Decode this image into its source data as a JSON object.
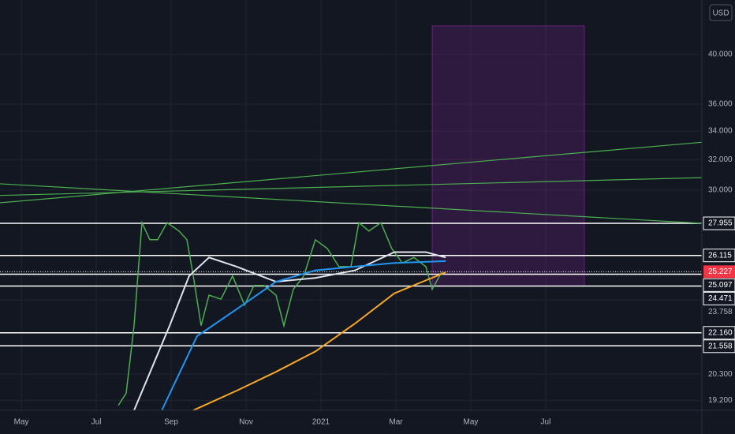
{
  "chart_data": {
    "type": "line",
    "log_scale": true,
    "grid": true,
    "currency": "USD",
    "xlim": [
      -0.57,
      18.17
    ],
    "ylim": [
      18.8,
      44.9
    ],
    "xticks": [
      {
        "value": 0,
        "label": "May"
      },
      {
        "value": 2,
        "label": "Jul"
      },
      {
        "value": 4,
        "label": "Sep"
      },
      {
        "value": 6,
        "label": "Nov"
      },
      {
        "value": 8,
        "label": "2021"
      },
      {
        "value": 10,
        "label": "Mar"
      },
      {
        "value": 12,
        "label": "May"
      },
      {
        "value": 14,
        "label": "Jul"
      }
    ],
    "yticks": [
      {
        "value": 19.2,
        "label": "19.200"
      },
      {
        "value": 20.3,
        "label": "20.300"
      },
      {
        "value": 23.758,
        "label": "23.758"
      },
      {
        "value": 30,
        "label": "30.000"
      },
      {
        "value": 32,
        "label": "32.000"
      },
      {
        "value": 34,
        "label": "34.000"
      },
      {
        "value": 36,
        "label": "36.000"
      },
      {
        "value": 40,
        "label": "40.000"
      }
    ],
    "levels": [
      {
        "value": 21.558,
        "label": "21.558"
      },
      {
        "value": 22.16,
        "label": "22.160"
      },
      {
        "value": 24.471,
        "label": "24.471"
      },
      {
        "value": 25.097,
        "label": "25.097"
      },
      {
        "value": 26.115,
        "label": "26.115"
      },
      {
        "value": 27.955,
        "label": "27.955"
      }
    ],
    "last_price": {
      "value": 25.227,
      "label": "25.227",
      "color": "#f23645"
    },
    "series": [
      {
        "color": "#4caf50",
        "x": [
          2.59,
          2.8,
          3.01,
          3.22,
          3.43,
          3.64,
          3.89,
          4.21,
          4.42,
          4.59,
          4.8,
          5.01,
          5.33,
          5.64,
          5.96,
          6.21,
          6.48,
          6.8,
          7.01,
          7.26,
          7.54,
          7.85,
          8.17,
          8.48,
          8.8,
          9.01,
          9.28,
          9.6,
          9.89,
          10.17,
          10.48,
          10.8,
          10.97,
          11.22
        ],
        "values": [
          19,
          19.5,
          22.5,
          28,
          27,
          27,
          28,
          27.5,
          27,
          25,
          22.5,
          24,
          23.8,
          25,
          23.5,
          24.5,
          24.5,
          24,
          22.5,
          24.3,
          25,
          27,
          26.5,
          25.5,
          25.5,
          28,
          27.5,
          28,
          26.5,
          25.7,
          26,
          25.5,
          24.3,
          25.2
        ]
      },
      {
        "color": "#e0e3eb",
        "x": [
          3.01,
          3.96,
          4.48,
          5.01,
          5.75,
          6.8,
          7.85,
          8.91,
          9.96,
          10.8,
          11.33
        ],
        "values": [
          18.8,
          22.5,
          25,
          26,
          25.5,
          24.7,
          24.9,
          25.3,
          26.3,
          26.3,
          26
        ]
      },
      {
        "color": "#2196f3",
        "x": [
          3.75,
          4.69,
          5.75,
          6.8,
          7.85,
          8.91,
          9.96,
          11.33
        ],
        "values": [
          18.8,
          22,
          23.3,
          24.7,
          25.3,
          25.5,
          25.7,
          25.8
        ]
      },
      {
        "color": "#f9a825",
        "x": [
          4.59,
          5.75,
          6.8,
          7.85,
          8.91,
          9.96,
          11.33
        ],
        "values": [
          18.8,
          19.6,
          20.4,
          21.3,
          22.6,
          24.1,
          25.2
        ]
      }
    ],
    "trendlines": [
      {
        "color": "#4caf50",
        "values": [
          29.2,
          33.2
        ]
      },
      {
        "color": "#4caf50",
        "values": [
          29.66,
          30.8
        ]
      },
      {
        "color": "#4caf50",
        "values": [
          30.4,
          27.955
        ]
      }
    ],
    "box": {
      "x": [
        10.97,
        15.03
      ],
      "values": [
        24.471,
        42.5
      ],
      "color": "#9c27b0"
    }
  }
}
